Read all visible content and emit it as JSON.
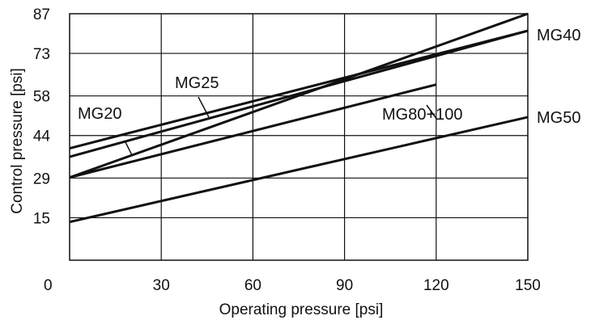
{
  "chart_data": {
    "type": "line",
    "xlabel": "Operating pressure [psi]",
    "ylabel": "Control pressure [psi]",
    "xlim": [
      0,
      150
    ],
    "ylim": [
      0,
      87
    ],
    "x_ticks": [
      "0",
      "30",
      "60",
      "90",
      "120",
      "150"
    ],
    "y_ticks": [
      "15",
      "29",
      "44",
      "58",
      "73",
      "87"
    ],
    "grid": true,
    "legend": "none",
    "series": [
      {
        "name": "MG20",
        "x": [
          0,
          150
        ],
        "y": [
          29.2,
          87
        ]
      },
      {
        "name": "MG25",
        "x": [
          0,
          150
        ],
        "y": [
          39.5,
          81
        ]
      },
      {
        "name": "MG40",
        "x": [
          0,
          150
        ],
        "y": [
          36.5,
          81
        ]
      },
      {
        "name": "MG80+100",
        "x": [
          0,
          120
        ],
        "y": [
          29.2,
          62
        ]
      },
      {
        "name": "MG50",
        "x": [
          0,
          150
        ],
        "y": [
          13.5,
          50.5
        ]
      }
    ]
  }
}
